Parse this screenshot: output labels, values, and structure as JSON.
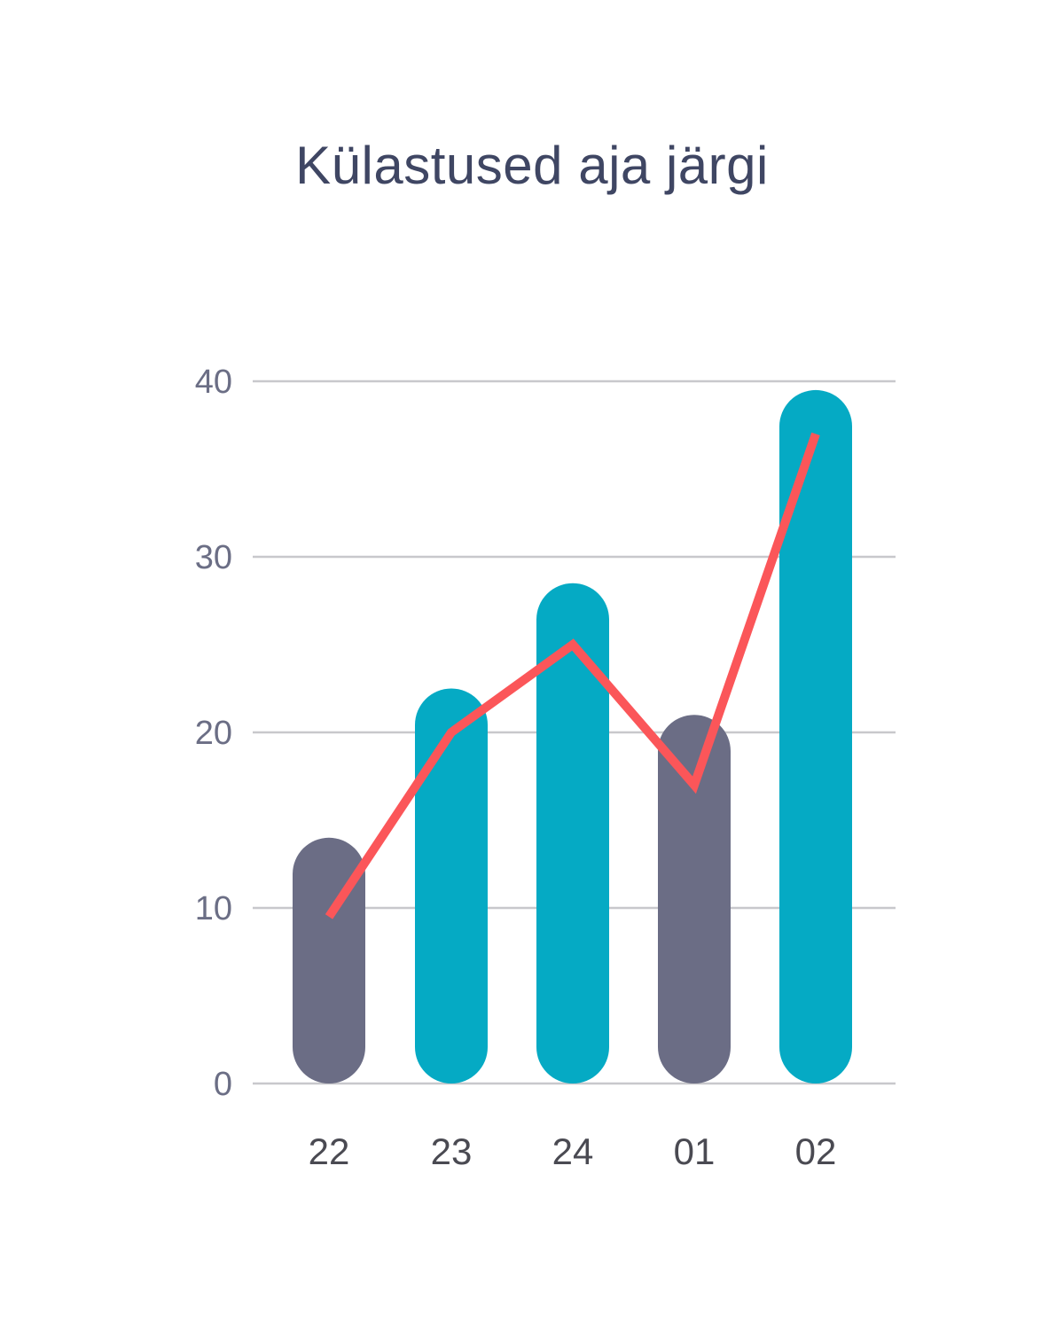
{
  "chart_data": {
    "type": "bar",
    "title": "Külastused aja järgi",
    "xlabel": "",
    "ylabel": "",
    "categories": [
      "22",
      "23",
      "24",
      "01",
      "02"
    ],
    "series": [
      {
        "type": "bar",
        "values": [
          14,
          22.5,
          28.5,
          21,
          39.5
        ],
        "colors": [
          "#6b6d85",
          "#05aac4",
          "#05aac4",
          "#6b6d85",
          "#05aac4"
        ]
      },
      {
        "type": "line",
        "values": [
          9.5,
          20,
          25,
          17,
          37
        ],
        "color": "#fb5659"
      }
    ],
    "ylim": [
      0,
      40
    ],
    "yticks": [
      "0",
      "10",
      "20",
      "30",
      "40"
    ],
    "grid": true,
    "legend": "none",
    "gridColor": "#c8c8cc"
  }
}
